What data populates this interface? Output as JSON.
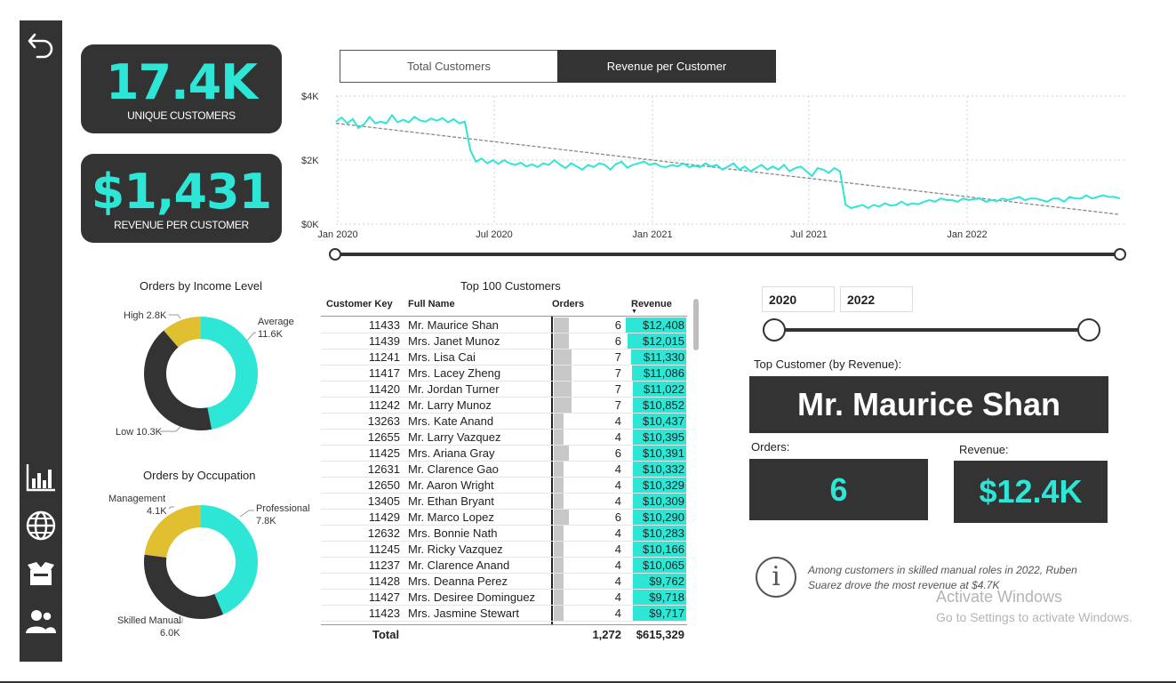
{
  "kpis": {
    "unique_customers": {
      "value": "17.4K",
      "label": "UNIQUE CUSTOMERS"
    },
    "revenue_per_customer": {
      "value": "$1,431",
      "label": "REVENUE PER CUSTOMER"
    }
  },
  "tabs": [
    {
      "label": "Total Customers",
      "active": false
    },
    {
      "label": "Revenue per Customer",
      "active": true
    }
  ],
  "colors": {
    "accent": "#2ee6d6",
    "dark": "#333333",
    "yellow": "#e0c030",
    "trend": "#888888"
  },
  "sidebar": {
    "icons": [
      "back-arrow-icon",
      "bar-chart-icon",
      "globe-icon",
      "box-icon",
      "users-icon"
    ]
  },
  "line_chart": {
    "y_labels": [
      "$4K",
      "$2K",
      "$0K"
    ],
    "x_labels": [
      "Jan 2020",
      "Jul 2020",
      "Jan 2021",
      "Jul 2021",
      "Jan 2022"
    ]
  },
  "chart_data": [
    {
      "type": "line",
      "title": "",
      "xlabel": "",
      "ylabel": "",
      "ylim": [
        0,
        4000
      ],
      "x_range": [
        "2020-01",
        "2022-06"
      ],
      "grid": true,
      "series": [
        {
          "name": "",
          "values": [
            3200,
            3330,
            3150,
            3280,
            3000,
            3120,
            3350,
            3150,
            3200,
            3150,
            3400,
            3180,
            3260,
            3180,
            3350,
            3240,
            3200,
            3300,
            3230,
            3310,
            3180,
            3280,
            3150,
            3200,
            2300,
            1950,
            2050,
            1900,
            2000,
            1880,
            2000,
            1900,
            1850,
            1920,
            1800,
            1870,
            1780,
            1900,
            1850,
            2000,
            1860,
            1750,
            1900,
            1800,
            1700,
            1850,
            1780,
            1900,
            1850,
            1700,
            1880,
            1950,
            1760,
            1850,
            1900,
            1950,
            1850,
            1900,
            1800,
            1780,
            1850,
            1800,
            1900,
            1780,
            1820,
            1780,
            1900,
            1800,
            1850,
            1700,
            1800,
            1900,
            1700,
            1800,
            1650,
            1750,
            1850,
            1700,
            1800,
            1700,
            1850,
            1650,
            1750,
            1800,
            1650,
            1500,
            1750,
            1700,
            1600,
            1750,
            1650,
            600,
            500,
            550,
            600,
            500,
            600,
            550,
            650,
            580,
            600,
            700,
            600,
            650,
            620,
            700,
            750,
            700,
            800,
            750,
            750,
            700,
            800,
            750,
            780,
            800,
            700,
            750,
            720,
            800,
            750,
            800,
            850,
            750,
            800,
            800,
            750,
            700,
            800,
            800,
            700,
            850,
            800,
            800,
            900,
            800,
            850,
            900,
            850,
            850,
            800
          ]
        },
        {
          "name": "",
          "values": [
            3150,
            300
          ]
        }
      ]
    },
    {
      "type": "pie",
      "title": "Orders by Income Level",
      "categories": [
        "Average",
        "Low",
        "High"
      ],
      "values": [
        11600,
        10300,
        2800
      ],
      "labels": [
        "Average 11.6K",
        "Low 10.3K",
        "High 2.8K"
      ]
    },
    {
      "type": "pie",
      "title": "Orders by Occupation",
      "categories": [
        "Professional",
        "Skilled Manual",
        "Management"
      ],
      "values": [
        7800,
        6000,
        4100
      ],
      "labels": [
        "Professional 7.8K",
        "Skilled Manual 6.0K",
        "Management 4.1K"
      ]
    },
    {
      "type": "table",
      "title": "Top 100 Customers",
      "columns": [
        "Customer Key",
        "Full Name",
        "Orders",
        "Revenue"
      ],
      "rows": [
        [
          "11433",
          "Mr. Maurice Shan",
          "6",
          "$12,408"
        ],
        [
          "11439",
          "Mrs. Janet Munoz",
          "6",
          "$12,015"
        ],
        [
          "11241",
          "Mrs. Lisa Cai",
          "7",
          "$11,330"
        ],
        [
          "11417",
          "Mrs. Lacey Zheng",
          "7",
          "$11,086"
        ],
        [
          "11420",
          "Mr. Jordan Turner",
          "7",
          "$11,022"
        ],
        [
          "11242",
          "Mr. Larry Munoz",
          "7",
          "$10,852"
        ],
        [
          "13263",
          "Mrs. Kate Anand",
          "4",
          "$10,437"
        ],
        [
          "12655",
          "Mr. Larry Vazquez",
          "4",
          "$10,395"
        ],
        [
          "11425",
          "Mrs. Ariana Gray",
          "6",
          "$10,391"
        ],
        [
          "12631",
          "Mr. Clarence Gao",
          "4",
          "$10,332"
        ],
        [
          "12650",
          "Mr. Aaron Wright",
          "4",
          "$10,329"
        ],
        [
          "13405",
          "Mr. Ethan Bryant",
          "4",
          "$10,309"
        ],
        [
          "11429",
          "Mr. Marco Lopez",
          "6",
          "$10,290"
        ],
        [
          "12632",
          "Mrs. Bonnie Nath",
          "4",
          "$10,283"
        ],
        [
          "11245",
          "Mr. Ricky Vazquez",
          "4",
          "$10,166"
        ],
        [
          "11237",
          "Mr. Clarence Anand",
          "4",
          "$10,065"
        ],
        [
          "11428",
          "Mrs. Deanna Perez",
          "4",
          "$9,762"
        ],
        [
          "11427",
          "Mrs. Desiree Dominguez",
          "4",
          "$9,718"
        ],
        [
          "11423",
          "Mrs. Jasmine Stewart",
          "4",
          "$9,717"
        ]
      ],
      "total": {
        "label": "Total",
        "orders": "1,272",
        "revenue": "$615,329"
      }
    }
  ],
  "table": {
    "title": "Top 100 Customers",
    "headers": {
      "key": "Customer Key",
      "name": "Full Name",
      "orders": "Orders",
      "revenue": "Revenue"
    },
    "revenue_max": 12408,
    "orders_max": 7
  },
  "filters": {
    "year_start": "2020",
    "year_end": "2022"
  },
  "top_customer": {
    "heading": "Top Customer (by Revenue):",
    "name": "Mr. Maurice Shan",
    "orders_label": "Orders:",
    "orders_value": "6",
    "revenue_label": "Revenue:",
    "revenue_value": "$12.4K"
  },
  "insight": {
    "line1": "Among customers in skilled manual roles in 2022, Ruben",
    "line2": "Suarez drove the most revenue at $4.7K"
  },
  "watermark": {
    "title": "Activate Windows",
    "subtitle": "Go to Settings to activate Windows."
  }
}
